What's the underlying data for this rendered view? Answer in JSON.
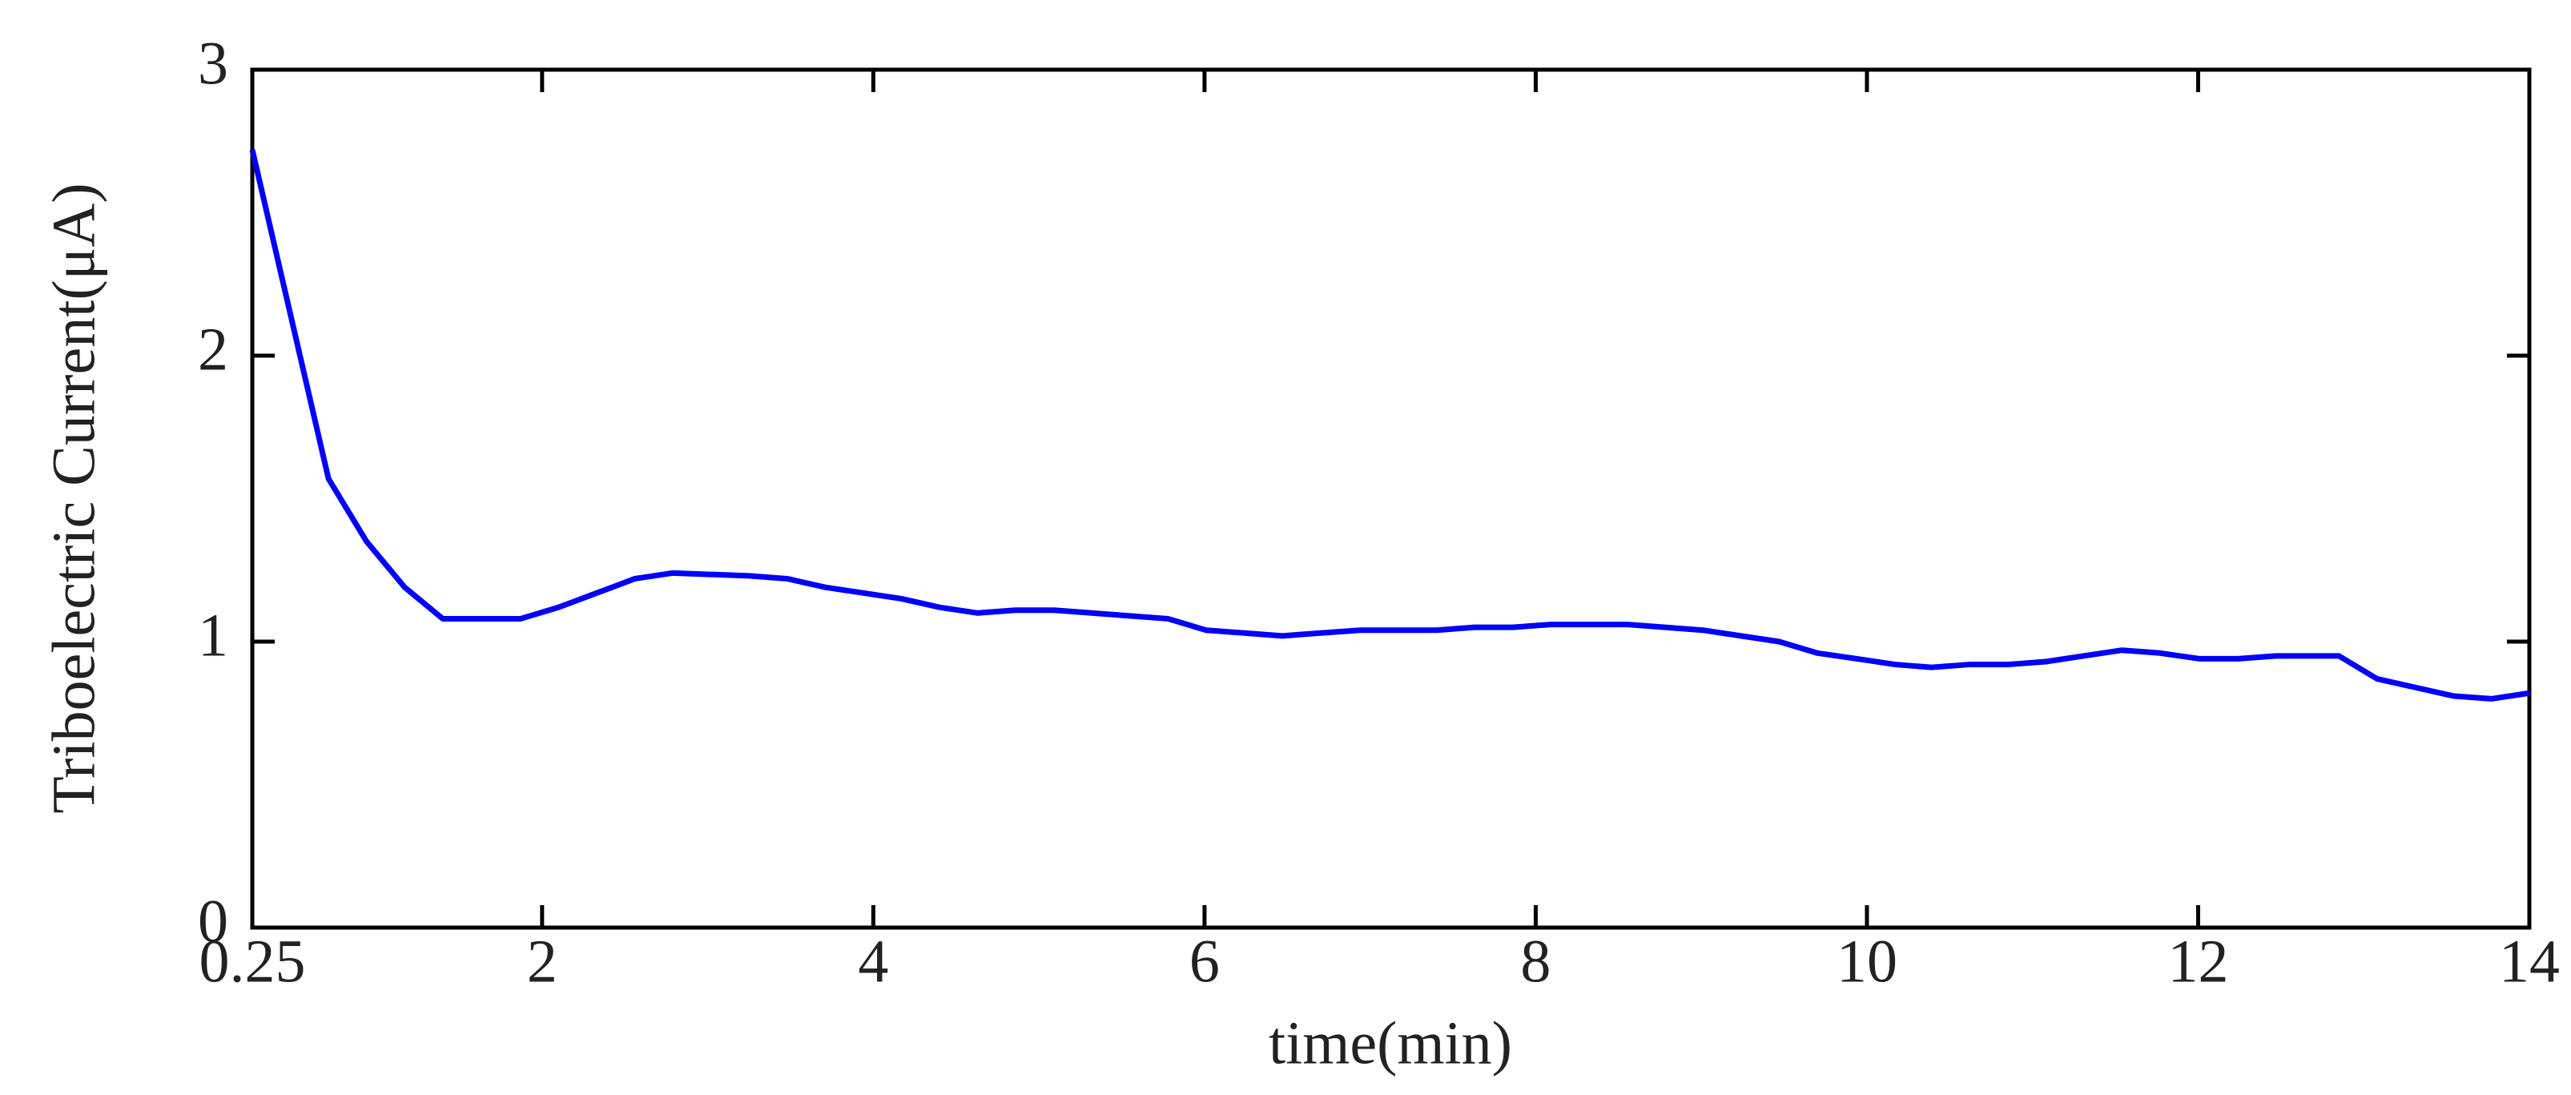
{
  "chart_data": {
    "type": "line",
    "x_label": "time(min)",
    "y_label": "Triboelectric Current(μA)",
    "xlim": [
      0.25,
      14
    ],
    "xticks": [
      0.25,
      2,
      4,
      6,
      8,
      10,
      12,
      14
    ],
    "ylim": [
      0,
      3
    ],
    "yticks": [
      0,
      1,
      2,
      3
    ],
    "grid": false,
    "x": [
      0.25,
      0.71,
      0.94,
      1.17,
      1.4,
      1.87,
      2.1,
      2.33,
      2.56,
      2.79,
      3.25,
      3.48,
      3.71,
      3.94,
      4.17,
      4.4,
      4.63,
      4.86,
      5.09,
      5.32,
      5.55,
      5.78,
      6.01,
      6.24,
      6.47,
      6.7,
      6.94,
      7.17,
      7.4,
      7.63,
      7.86,
      8.09,
      8.32,
      8.55,
      8.78,
      9.01,
      9.24,
      9.47,
      9.7,
      9.94,
      10.17,
      10.39,
      10.62,
      10.85,
      11.08,
      11.31,
      11.54,
      11.77,
      12.01,
      12.24,
      12.47,
      12.85,
      13.08,
      13.31,
      13.54,
      13.77,
      14.0
    ],
    "series": [
      {
        "color": "#0000ff",
        "values": [
          2.72,
          1.57,
          1.35,
          1.19,
          1.08,
          1.08,
          1.12,
          1.17,
          1.22,
          1.24,
          1.23,
          1.22,
          1.19,
          1.17,
          1.15,
          1.12,
          1.1,
          1.11,
          1.11,
          1.1,
          1.09,
          1.08,
          1.04,
          1.03,
          1.02,
          1.03,
          1.04,
          1.04,
          1.04,
          1.05,
          1.05,
          1.06,
          1.06,
          1.06,
          1.05,
          1.04,
          1.02,
          1.0,
          0.96,
          0.94,
          0.92,
          0.91,
          0.92,
          0.92,
          0.93,
          0.95,
          0.97,
          0.96,
          0.94,
          0.94,
          0.95,
          0.95,
          0.87,
          0.84,
          0.81,
          0.8,
          0.82
        ]
      }
    ]
  }
}
